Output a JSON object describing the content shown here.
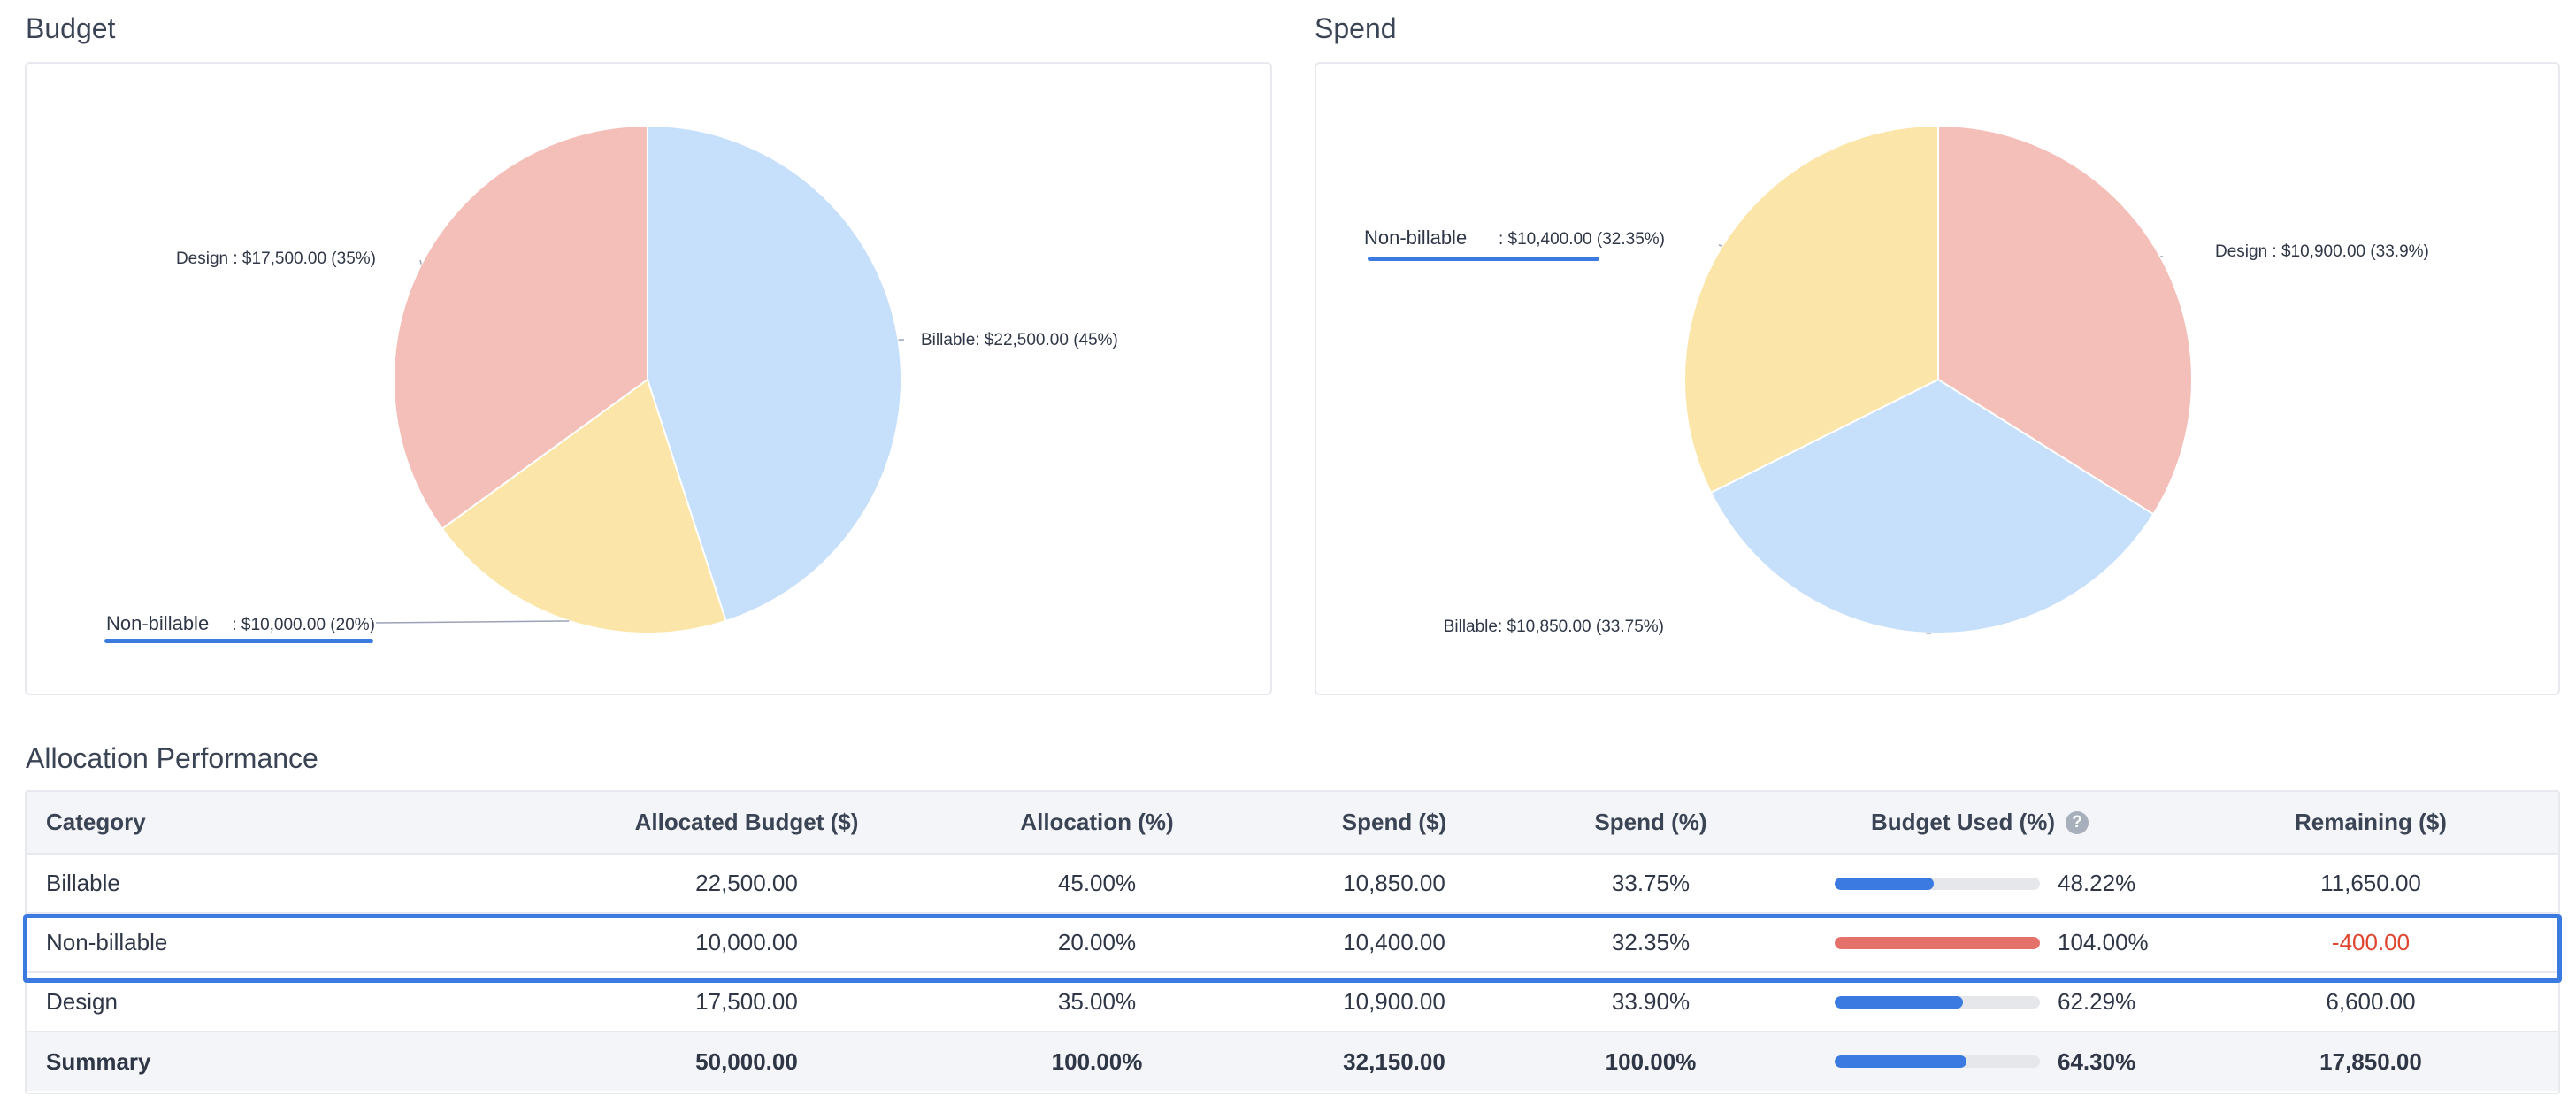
{
  "budget_section": {
    "title": "Budget"
  },
  "spend_section": {
    "title": "Spend"
  },
  "chart_data": [
    {
      "type": "pie",
      "title": "Budget",
      "slices": [
        {
          "category": "Billable",
          "value": 22500,
          "percent": 45,
          "label": "Billable: $22,500.00 (45%)",
          "color": "#c6dffa"
        },
        {
          "category": "Non-billable",
          "value": 10000,
          "percent": 20,
          "label": ": $10,000.00 (20%)",
          "color": "#fbe5a8"
        },
        {
          "category": "Design",
          "value": 17500,
          "percent": 35,
          "label": "Design : $17,500.00 (35%)",
          "color": "#f5bfb9"
        }
      ],
      "annotation_label": "Non-billable"
    },
    {
      "type": "pie",
      "title": "Spend",
      "slices": [
        {
          "category": "Design",
          "value": 10900,
          "percent": 33.9,
          "label": "Design : $10,900.00 (33.9%)",
          "color": "#f5bfb9"
        },
        {
          "category": "Billable",
          "value": 10850,
          "percent": 33.75,
          "label": "Billable: $10,850.00 (33.75%)",
          "color": "#c6dffa"
        },
        {
          "category": "Non-billable",
          "value": 10400,
          "percent": 32.35,
          "label": ": $10,400.00 (32.35%)",
          "color": "#fbe5a8"
        }
      ],
      "annotation_label": "Non-billable"
    }
  ],
  "table": {
    "title": "Allocation Performance",
    "columns": {
      "category": "Category",
      "allocated": "Allocated Budget ($)",
      "allocation_pct": "Allocation (%)",
      "spend": "Spend ($)",
      "spend_pct": "Spend (%)",
      "budget_used": "Budget Used (%)",
      "remaining": "Remaining ($)"
    },
    "help_icon": "question-circle-icon",
    "rows": [
      {
        "category": "Billable",
        "allocated": "22,500.00",
        "allocation_pct": "45.00%",
        "spend": "10,850.00",
        "spend_pct": "33.75%",
        "budget_used": "48.22%",
        "used_fraction": 0.4822,
        "bar_color": "#3b7ae0",
        "remaining": "11,650.00"
      },
      {
        "category": "Non-billable",
        "allocated": "10,000.00",
        "allocation_pct": "20.00%",
        "spend": "10,400.00",
        "spend_pct": "32.35%",
        "budget_used": "104.00%",
        "used_fraction": 1.0,
        "bar_color": "#e4716a",
        "remaining": "-400.00"
      },
      {
        "category": "Design",
        "allocated": "17,500.00",
        "allocation_pct": "35.00%",
        "spend": "10,900.00",
        "spend_pct": "33.90%",
        "budget_used": "62.29%",
        "used_fraction": 0.6229,
        "bar_color": "#3b7ae0",
        "remaining": "6,600.00"
      }
    ],
    "summary": {
      "category": "Summary",
      "allocated": "50,000.00",
      "allocation_pct": "100.00%",
      "spend": "32,150.00",
      "spend_pct": "100.00%",
      "budget_used": "64.30%",
      "used_fraction": 0.643,
      "bar_color": "#3b7ae0",
      "remaining": "17,850.00"
    }
  },
  "colors": {
    "accent": "#3b7ae0",
    "danger": "#e0452f",
    "border": "#e7e9ee"
  }
}
